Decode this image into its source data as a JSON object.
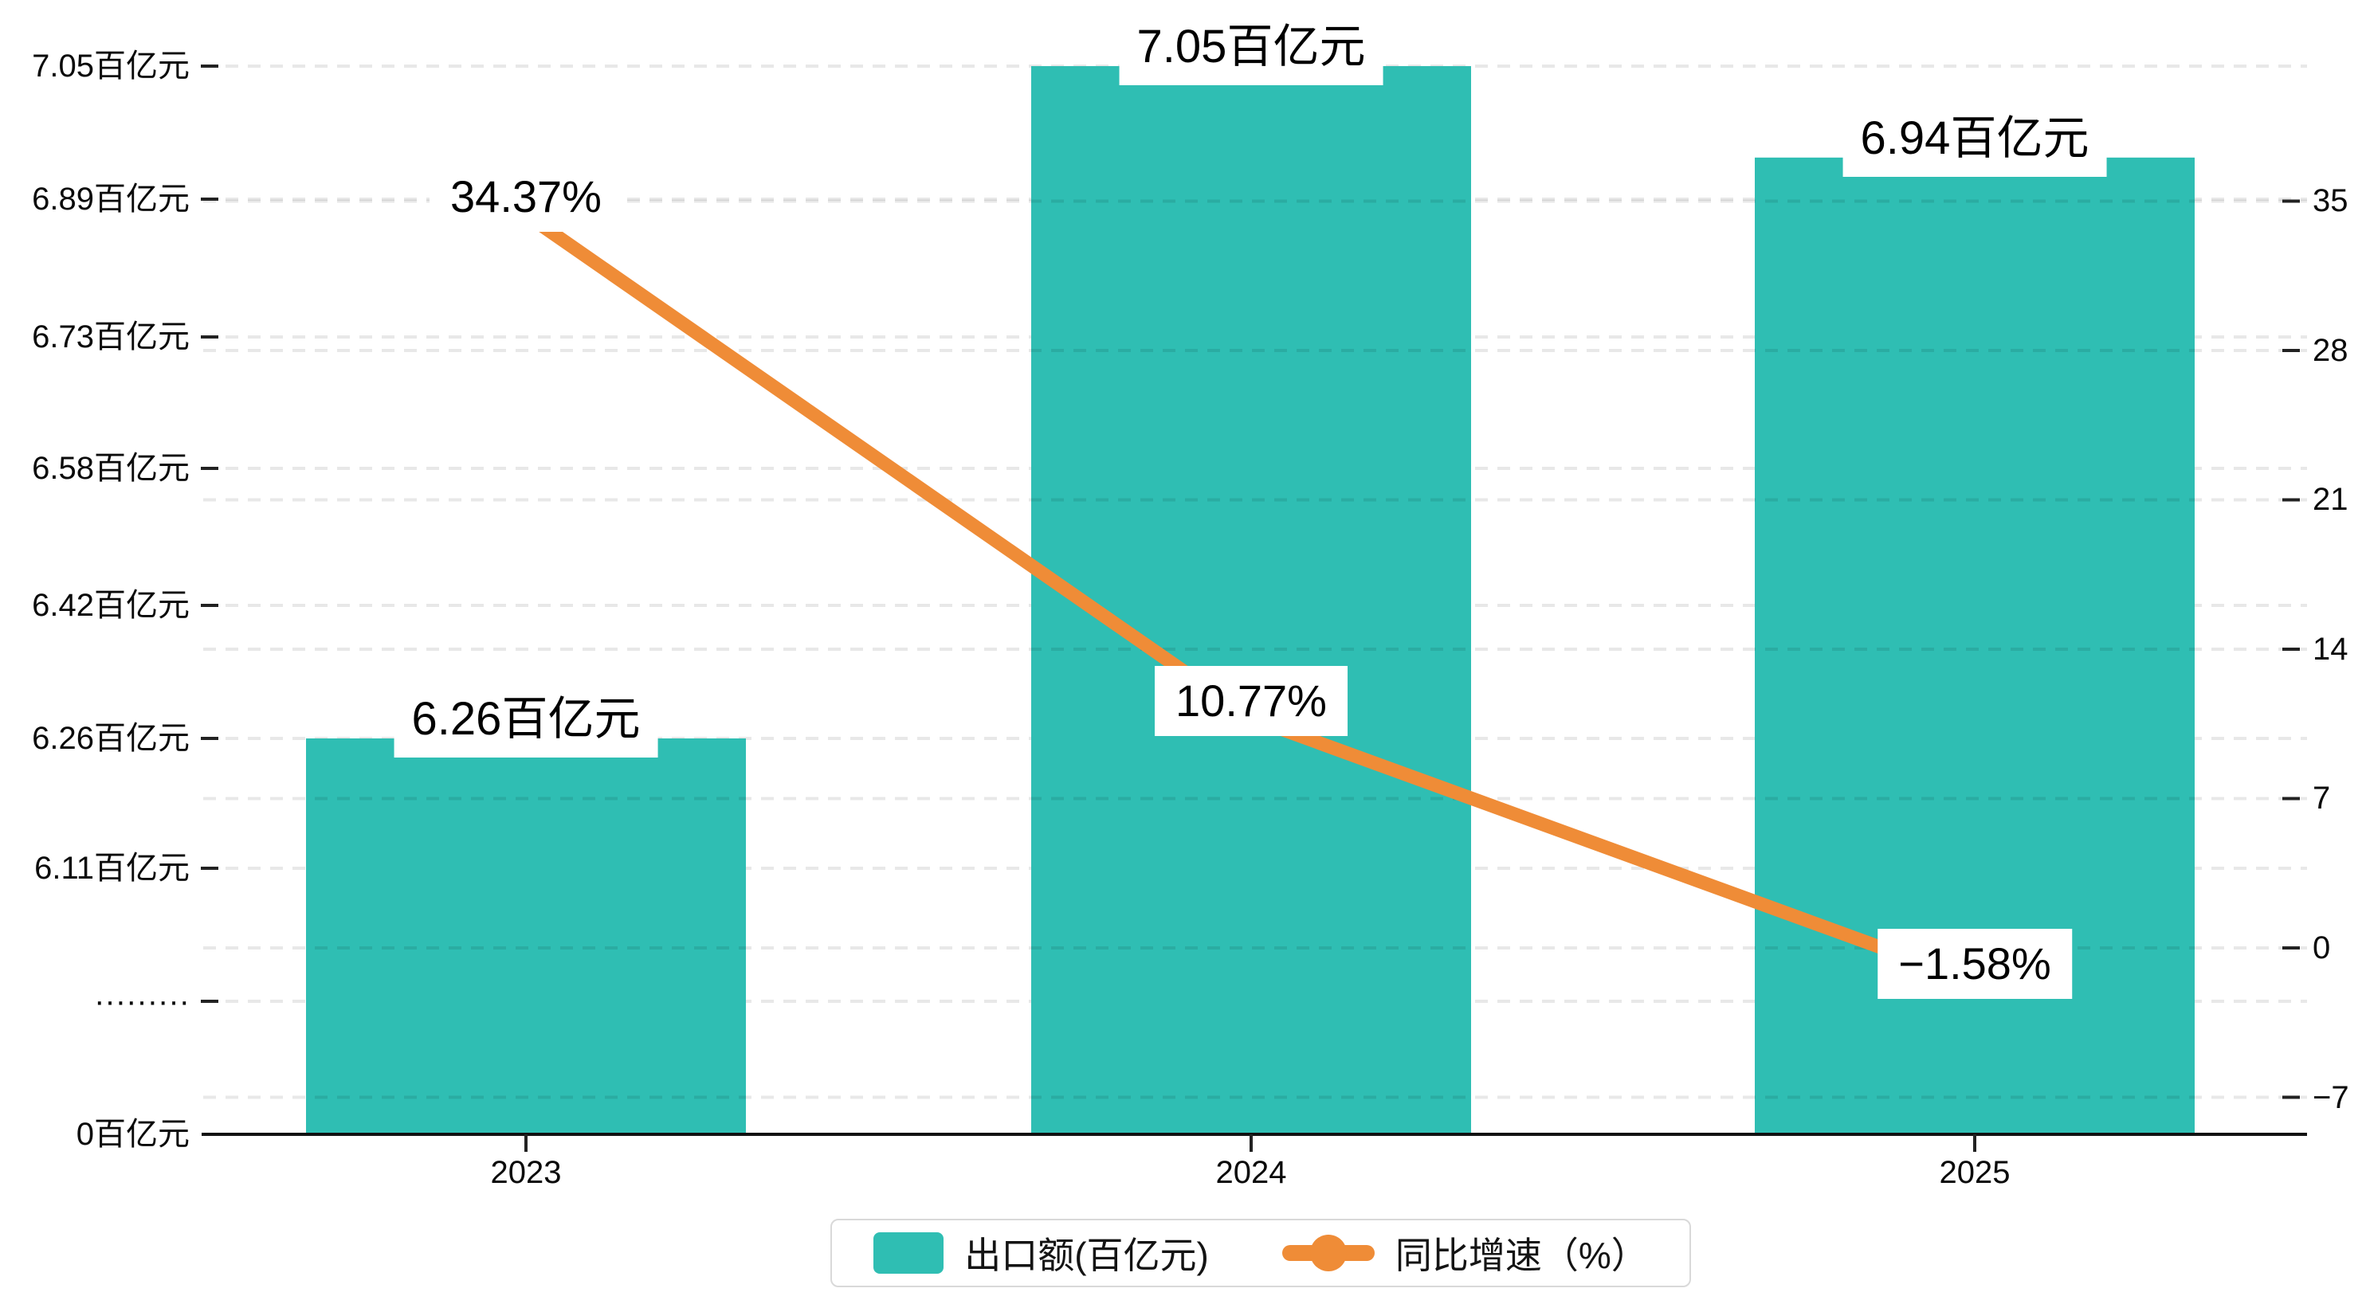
{
  "chart_data": {
    "type": "combo-bar-line",
    "title": "",
    "categories": [
      "2023",
      "2024",
      "2025"
    ],
    "series": [
      {
        "name": "出口额(百亿元)",
        "type": "bar",
        "values": [
          6.26,
          7.05,
          6.94
        ],
        "unit": "百亿元",
        "color": "#2fbeb3",
        "data_labels": [
          "6.26百亿元",
          "7.05百亿元",
          "6.94百亿元"
        ],
        "axis": "left"
      },
      {
        "name": "同比增速（%）",
        "type": "line",
        "values": [
          34.37,
          10.77,
          -1.58
        ],
        "unit": "%",
        "color": "#ef8c37",
        "data_labels": [
          "34.37%",
          "10.77%",
          "−1.58%"
        ],
        "axis": "right"
      }
    ],
    "left_axis": {
      "broken_axis": true,
      "tick_labels": [
        "0百亿元",
        "·········",
        "6.11百亿元",
        "6.26百亿元",
        "6.42百亿元",
        "6.58百亿元",
        "6.73百亿元",
        "6.89百亿元",
        "7.05百亿元"
      ],
      "tick_values": [
        0,
        null,
        6.11,
        6.26,
        6.42,
        6.58,
        6.73,
        6.89,
        7.05
      ]
    },
    "right_axis": {
      "tick_labels": [
        "−7",
        "0",
        "7",
        "14",
        "21",
        "28",
        "35"
      ],
      "tick_values": [
        -7,
        0,
        7,
        14,
        21,
        28,
        35
      ]
    },
    "grid": "horizontal dashed, both axes",
    "legend_position": "bottom-center",
    "colors": {
      "bar": "#2fbeb3",
      "line": "#ef8c37",
      "axis_line": "#111111",
      "gridline": "rgba(0,0,0,0.09)",
      "label_background": "#ffffff"
    }
  }
}
